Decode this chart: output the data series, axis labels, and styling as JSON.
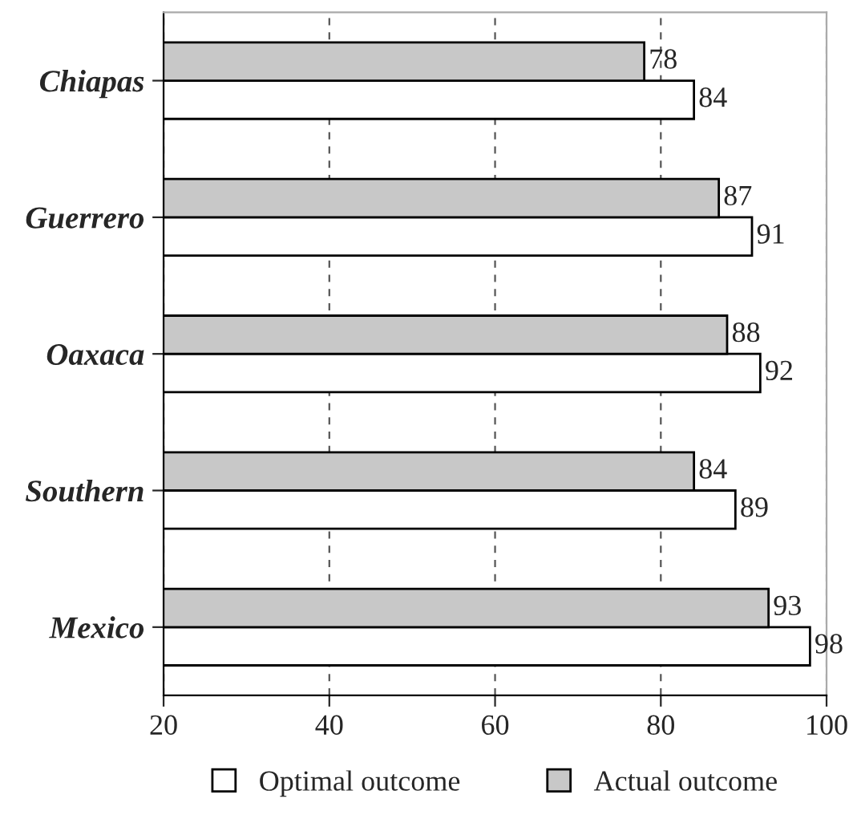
{
  "chart_data": {
    "type": "bar",
    "orientation": "horizontal",
    "categories": [
      "Chiapas",
      "Guerrero",
      "Oaxaca",
      "Southern",
      "Mexico"
    ],
    "series": [
      {
        "name": "Optimal outcome",
        "color": "#ffffff",
        "values": [
          84,
          91,
          92,
          89,
          98
        ]
      },
      {
        "name": "Actual outcome",
        "color": "#c8c8c8",
        "values": [
          78,
          87,
          88,
          84,
          93
        ]
      }
    ],
    "xlim": [
      20,
      100
    ],
    "xticks": [
      20,
      40,
      60,
      80,
      100
    ],
    "grid": "x",
    "legend": "bottom",
    "data_labels": true
  }
}
